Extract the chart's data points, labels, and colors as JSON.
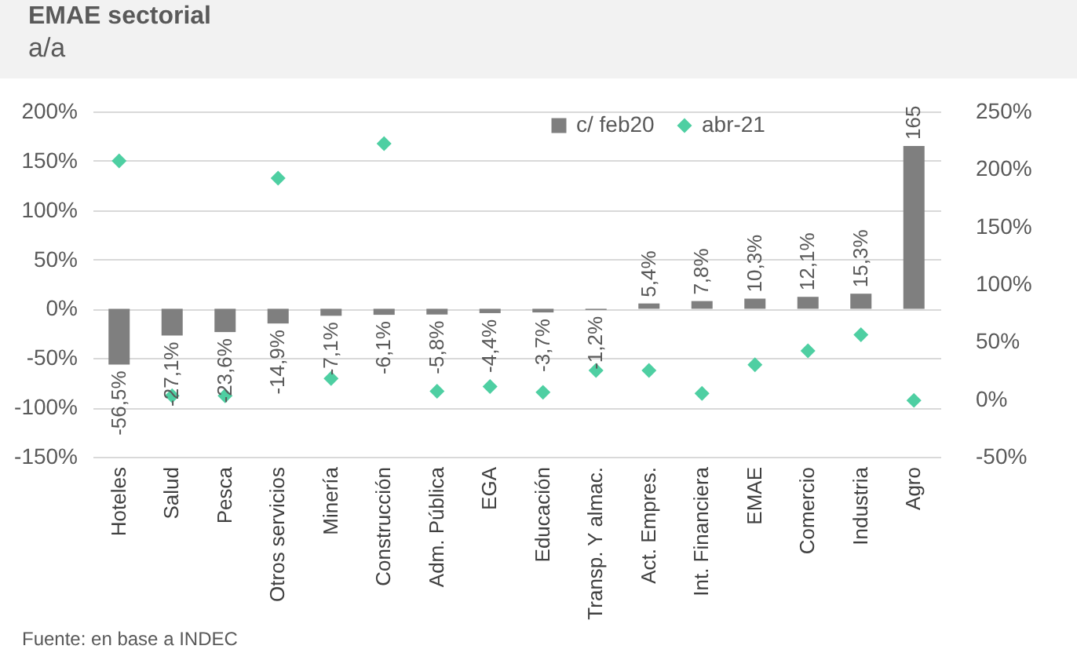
{
  "chart_data": {
    "type": "bar",
    "title": "EMAE sectorial",
    "subtitle": "a/a",
    "categories": [
      "Hoteles",
      "Salud",
      "Pesca",
      "Otros servicios",
      "Minería",
      "Construcción",
      "Adm. Pública",
      "EGA",
      "Educación",
      "Transp. Y almac.",
      "Act. Empres.",
      "Int. Financiera",
      "EMAE",
      "Comercio",
      "Industria",
      "Agro"
    ],
    "series": [
      {
        "name": "c/ feb20",
        "color": "#7f7f7f",
        "values": [
          -56.5,
          -27.1,
          -23.6,
          -14.9,
          -7.1,
          -6.1,
          -5.8,
          -4.4,
          -3.7,
          -1.2,
          5.4,
          7.8,
          10.3,
          12.1,
          15.3,
          165
        ],
        "value_labels": [
          "-56,5%",
          "-27,1%",
          "-23,6%",
          "-14,9%",
          "-7,1%",
          "-6,1%",
          "-5,8%",
          "-4,4%",
          "-3,7%",
          "-1,2%",
          "5,4%",
          "7,8%",
          "10,3%",
          "12,1%",
          "15,3%",
          "165"
        ]
      },
      {
        "name": "abr-21",
        "type": "scatter",
        "axis": "y2",
        "color": "#4ecfa2",
        "marker": "diamond",
        "values": [
          207,
          3,
          3,
          192,
          18,
          222,
          7,
          11,
          6,
          25,
          25,
          5,
          30,
          42,
          56,
          -1
        ]
      }
    ],
    "ylim": [
      -150,
      200
    ],
    "yticks": [
      {
        "value": -150,
        "label": "-150%"
      },
      {
        "value": -100,
        "label": "-100%"
      },
      {
        "value": -50,
        "label": "-50%"
      },
      {
        "value": 0,
        "label": "0%"
      },
      {
        "value": 50,
        "label": "50%"
      },
      {
        "value": 100,
        "label": "100%"
      },
      {
        "value": 150,
        "label": "150%"
      },
      {
        "value": 200,
        "label": "200%"
      }
    ],
    "y2lim": [
      -50,
      250
    ],
    "y2ticks": [
      {
        "value": -50,
        "label": "-50%"
      },
      {
        "value": 0,
        "label": "0%"
      },
      {
        "value": 50,
        "label": "50%"
      },
      {
        "value": 100,
        "label": "100%"
      },
      {
        "value": 150,
        "label": "150%"
      },
      {
        "value": 200,
        "label": "200%"
      },
      {
        "value": 250,
        "label": "250%"
      }
    ],
    "grid": "y",
    "legend": "top",
    "annotations": [
      "Fuente: en base a INDEC"
    ]
  }
}
